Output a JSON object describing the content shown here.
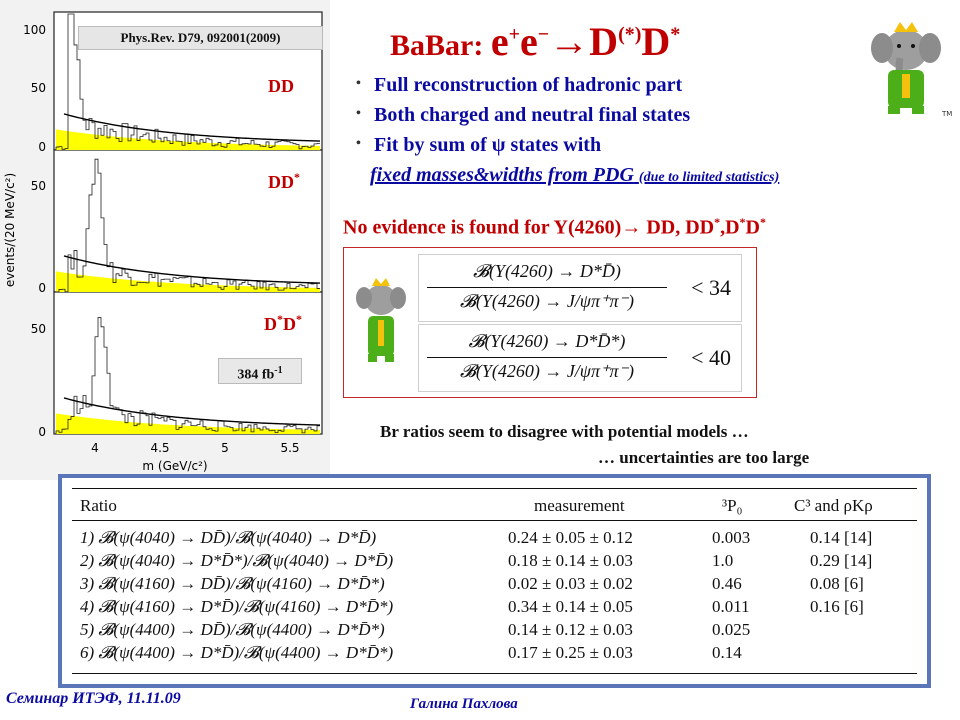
{
  "histogram": {
    "reference": "Phys.Rev. D79, 092001(2009)",
    "panels": [
      {
        "label": "DD",
        "y_ticks": [
          "100",
          "50",
          "0"
        ]
      },
      {
        "label": "DD*",
        "y_ticks": [
          "50",
          "0"
        ]
      },
      {
        "label": "D*D*",
        "y_ticks": [
          "50",
          "0"
        ]
      }
    ],
    "ylabel": "events/(20 MeV/c²)",
    "xlabel": "m (GeV/c²)",
    "x_ticks": [
      "4",
      "4.5",
      "5",
      "5.5"
    ],
    "luminosity": "384 fb-1",
    "colors": {
      "background": "#f2f2f2",
      "fill": "#ffff00",
      "curve": "#000000"
    }
  },
  "title": {
    "lead": "BaBar: ",
    "process": "e+e−→D(*)D*"
  },
  "bullets": [
    "Full reconstruction of hadronic part",
    "Both charged and neutral final states",
    "Fit by sum of ψ states with"
  ],
  "bullet_continuation": {
    "main": "fixed masses&widths from PDG",
    "note": "(due to limited statistics)"
  },
  "no_evidence": "No evidence is found for Y(4260)→ DD, DD*,D*D*",
  "formulas": [
    {
      "numerator": "𝓑(Y(4260) → D*D̄)",
      "denominator": "𝓑(Y(4260) → J/ψπ⁺π⁻)",
      "relation": "< 34"
    },
    {
      "numerator": "𝓑(Y(4260) → D*D̄*)",
      "denominator": "𝓑(Y(4260) → J/ψπ⁺π⁻)",
      "relation": "< 40"
    }
  ],
  "notes": [
    "Br ratios seem to disagree with potential models …",
    "… uncertainties are too large"
  ],
  "table": {
    "headers": [
      "Ratio",
      "measurement",
      "³P₀",
      "C³ and ρKρ"
    ],
    "rows": [
      {
        "ratio": "1) 𝓑(ψ(4040) → DD̄)/𝓑(ψ(4040) → D*D̄)",
        "measurement": "0.24 ± 0.05 ± 0.12",
        "p0": "0.003",
        "c3": "0.14 [14]"
      },
      {
        "ratio": "2) 𝓑(ψ(4040) → D*D̄*)/𝓑(ψ(4040) → D*D̄)",
        "measurement": "0.18 ± 0.14 ± 0.03",
        "p0": "1.0",
        "c3": "0.29 [14]"
      },
      {
        "ratio": "3) 𝓑(ψ(4160) → DD̄)/𝓑(ψ(4160) → D*D̄*)",
        "measurement": "0.02 ± 0.03 ± 0.02",
        "p0": "0.46",
        "c3": "0.08 [6]"
      },
      {
        "ratio": "4) 𝓑(ψ(4160) → D*D̄)/𝓑(ψ(4160) → D*D̄*)",
        "measurement": "0.34 ± 0.14 ± 0.05",
        "p0": "0.011",
        "c3": "0.16 [6]"
      },
      {
        "ratio": "5) 𝓑(ψ(4400) → DD̄)/𝓑(ψ(4400) → D*D̄*)",
        "measurement": "0.14 ± 0.12 ± 0.03",
        "p0": "0.025",
        "c3": ""
      },
      {
        "ratio": "6) 𝓑(ψ(4400) → D*D̄)/𝓑(ψ(4400) → D*D̄*)",
        "measurement": "0.17 ± 0.25 ± 0.03",
        "p0": "0.14",
        "c3": ""
      }
    ]
  },
  "footer": {
    "left": "Семинар ИТЭФ, 11.11.09",
    "center": "Галина Пахлова"
  }
}
